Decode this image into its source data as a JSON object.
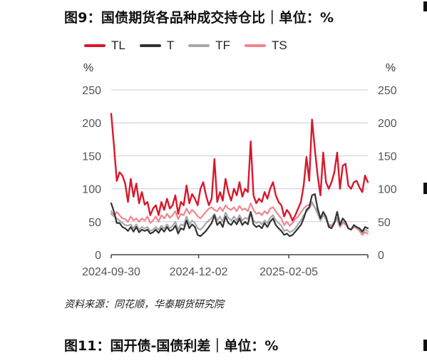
{
  "title": "图9：国债期货各品种成交持仓比｜单位：%",
  "next_title": "图11：国开债-国债利差｜单位：%",
  "source": "资料来源：同花顺，华泰期货研究院",
  "colors": {
    "TL": "#d7192c",
    "T": "#333333",
    "TF": "#a8a8a8",
    "TS": "#f0868c",
    "grid": "#c9cbe6",
    "axis": "#444444"
  },
  "chart_data": {
    "type": "line",
    "ylabel_left": "%",
    "ylabel_right": "%",
    "ylim": [
      0,
      250
    ],
    "yticks": [
      0,
      50,
      100,
      150,
      200,
      250
    ],
    "xlim": [
      "2024-09-30",
      "2025-04-03"
    ],
    "xticks": [
      "2024-09-30",
      "2024-12-02",
      "2025-02-05"
    ],
    "grid": "horizontal",
    "legend": "top",
    "series": [
      {
        "name": "TL",
        "values": [
          214,
          165,
          112,
          125,
          120,
          108,
          80,
          115,
          88,
          108,
          78,
          95,
          76,
          80,
          60,
          70,
          75,
          60,
          80,
          68,
          85,
          70,
          75,
          90,
          62,
          80,
          75,
          105,
          78,
          92,
          85,
          75,
          100,
          110,
          90,
          75,
          85,
          145,
          80,
          95,
          82,
          115,
          95,
          82,
          100,
          90,
          110,
          88,
          100,
          95,
          172,
          90,
          78,
          85,
          80,
          95,
          85,
          100,
          110,
          90,
          80,
          75,
          58,
          68,
          62,
          52,
          60,
          70,
          80,
          105,
          148,
          112,
          205,
          160,
          120,
          90,
          155,
          110,
          100,
          110,
          125,
          155,
          100,
          135,
          138,
          105,
          100,
          110,
          112,
          102,
          95,
          120,
          110
        ]
      },
      {
        "name": "T",
        "values": [
          78,
          65,
          48,
          48,
          42,
          40,
          36,
          42,
          35,
          42,
          34,
          38,
          36,
          38,
          32,
          34,
          38,
          33,
          40,
          35,
          42,
          36,
          38,
          44,
          32,
          40,
          38,
          52,
          40,
          46,
          42,
          30,
          28,
          32,
          36,
          42,
          48,
          60,
          45,
          50,
          42,
          58,
          48,
          45,
          52,
          46,
          55,
          45,
          50,
          46,
          65,
          46,
          42,
          44,
          40,
          48,
          42,
          50,
          55,
          45,
          40,
          36,
          30,
          32,
          28,
          30,
          35,
          40,
          45,
          55,
          68,
          72,
          90,
          92,
          70,
          55,
          65,
          58,
          42,
          40,
          48,
          65,
          45,
          55,
          50,
          40,
          38,
          45,
          42,
          40,
          35,
          42,
          40
        ]
      },
      {
        "name": "TF",
        "values": [
          66,
          60,
          55,
          52,
          48,
          45,
          44,
          46,
          40,
          46,
          38,
          42,
          40,
          42,
          36,
          38,
          42,
          38,
          44,
          40,
          46,
          40,
          44,
          50,
          38,
          46,
          44,
          58,
          46,
          52,
          48,
          40,
          38,
          42,
          48,
          52,
          56,
          62,
          52,
          58,
          50,
          64,
          56,
          52,
          58,
          52,
          60,
          52,
          56,
          54,
          65,
          52,
          48,
          50,
          46,
          52,
          48,
          56,
          60,
          52,
          48,
          44,
          36,
          38,
          34,
          36,
          40,
          46,
          52,
          60,
          65,
          70,
          78,
          72,
          62,
          52,
          60,
          54,
          44,
          42,
          48,
          56,
          44,
          50,
          48,
          40,
          38,
          44,
          42,
          38,
          32,
          38,
          36
        ]
      },
      {
        "name": "TS",
        "values": [
          62,
          58,
          65,
          60,
          55,
          54,
          50,
          58,
          52,
          55,
          50,
          55,
          52,
          58,
          48,
          52,
          58,
          50,
          60,
          55,
          62,
          56,
          60,
          66,
          54,
          62,
          60,
          70,
          62,
          68,
          64,
          58,
          55,
          60,
          65,
          70,
          72,
          68,
          66,
          72,
          66,
          75,
          70,
          68,
          72,
          66,
          74,
          68,
          70,
          66,
          78,
          68,
          62,
          64,
          60,
          66,
          62,
          70,
          72,
          66,
          60,
          55,
          45,
          50,
          44,
          48,
          54,
          58,
          64,
          70,
          74,
          76,
          80,
          72,
          66,
          56,
          60,
          55,
          46,
          44,
          50,
          54,
          42,
          48,
          46,
          40,
          38,
          42,
          40,
          36,
          30,
          34,
          32
        ]
      }
    ]
  }
}
